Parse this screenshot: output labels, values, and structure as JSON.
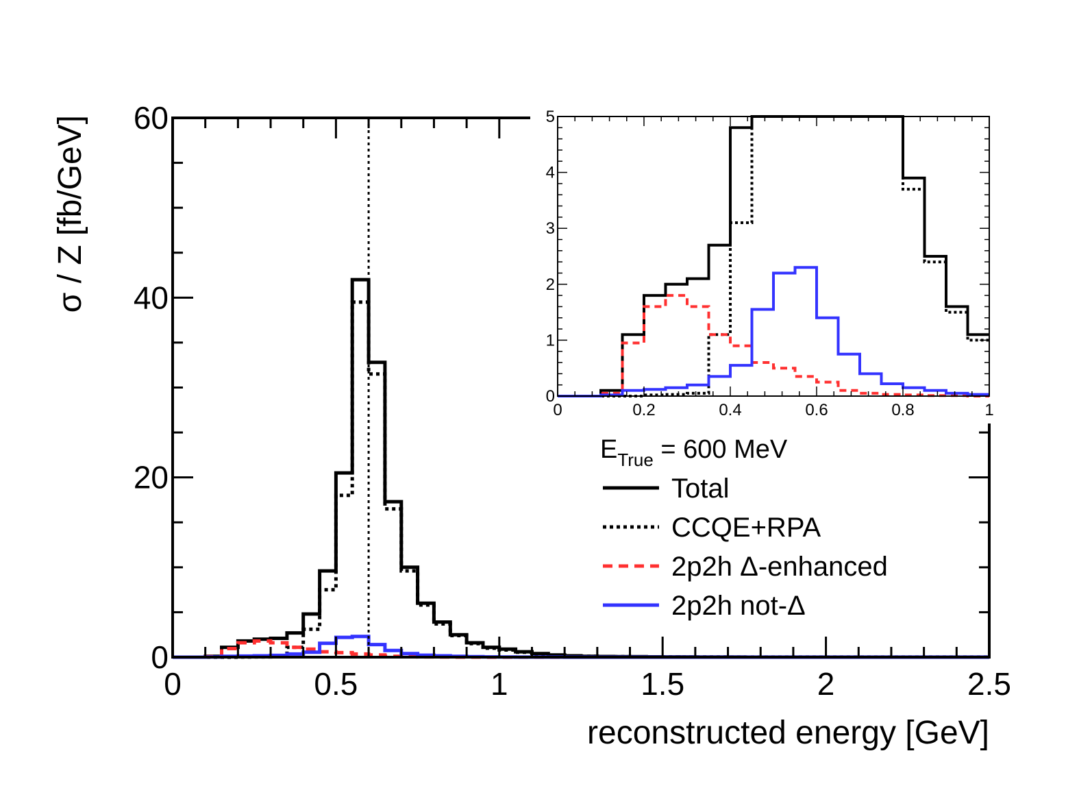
{
  "chart_data": [
    {
      "type": "line",
      "style": "step-histogram",
      "xlabel": "reconstructed energy [GeV]",
      "ylabel": "σ / Z [fb/GeV]",
      "xlim": [
        0,
        2.5
      ],
      "ylim": [
        0,
        60
      ],
      "x_ticks": [
        0,
        0.5,
        1,
        1.5,
        2,
        2.5
      ],
      "x_tick_labels": [
        "0",
        "0.5",
        "1",
        "1.5",
        "2",
        "2.5"
      ],
      "y_ticks": [
        0,
        20,
        40,
        60
      ],
      "y_tick_labels": [
        "0",
        "20",
        "40",
        "60"
      ],
      "grid": false,
      "bin_edges": [
        0,
        0.05,
        0.1,
        0.15,
        0.2,
        0.25,
        0.3,
        0.35,
        0.4,
        0.45,
        0.5,
        0.55,
        0.6,
        0.65,
        0.7,
        0.75,
        0.8,
        0.85,
        0.9,
        0.95,
        1.0,
        1.05,
        1.1,
        1.15,
        1.2,
        1.25,
        1.3,
        1.35,
        1.4,
        1.45,
        1.5,
        1.55,
        1.6,
        1.65,
        1.7,
        1.75,
        1.8,
        1.85,
        1.9,
        1.95,
        2.0,
        2.05,
        2.1,
        2.15,
        2.2,
        2.25,
        2.3,
        2.35,
        2.4,
        2.45,
        2.5
      ],
      "reference_line": {
        "x": 0.6,
        "style": "dotted"
      },
      "series": [
        {
          "name": "Total",
          "color": "#000000",
          "dash": "solid",
          "values": [
            0,
            0,
            0.1,
            1.1,
            1.8,
            2.0,
            2.1,
            2.7,
            4.8,
            9.6,
            20.5,
            42,
            32.8,
            17.3,
            10,
            6,
            3.9,
            2.5,
            1.6,
            1.1,
            0.9,
            0.6,
            0.4,
            0.25,
            0.15,
            0.1,
            0.08,
            0.06,
            0.05,
            0.04,
            0.03,
            0.03,
            0.02,
            0.02,
            0.02,
            0.01,
            0.01,
            0.01,
            0.01,
            0.01,
            0.01,
            0.01,
            0.01,
            0.01,
            0.01,
            0.01,
            0.01,
            0.01,
            0.01,
            0.01
          ]
        },
        {
          "name": "CCQE+RPA",
          "color": "#000000",
          "dash": "dotted",
          "values": [
            0,
            0,
            0,
            0,
            0.02,
            0.03,
            0.05,
            1.1,
            3.1,
            7.5,
            18,
            39.5,
            31.5,
            16.5,
            9.6,
            5.8,
            3.7,
            2.4,
            1.5,
            1.0,
            0.8,
            0.55,
            0.35,
            0.22,
            0.13,
            0.09,
            0.07,
            0.05,
            0.04,
            0.03,
            0.03,
            0.02,
            0.02,
            0.02,
            0.01,
            0.01,
            0.01,
            0.01,
            0.01,
            0.01,
            0.01,
            0.01,
            0.01,
            0.01,
            0.01,
            0.01,
            0.01,
            0.01,
            0.01,
            0.01
          ]
        },
        {
          "name": "2p2h Δ-enhanced",
          "color": "#ff3030",
          "dash": "dashed",
          "values": [
            0,
            0,
            0.05,
            0.95,
            1.6,
            1.8,
            1.6,
            1.1,
            0.9,
            0.6,
            0.5,
            0.35,
            0.25,
            0.1,
            0.05,
            0.03,
            0.02,
            0.01,
            0.01,
            0,
            0,
            0,
            0,
            0,
            0,
            0,
            0,
            0,
            0,
            0,
            0,
            0,
            0,
            0,
            0,
            0,
            0,
            0,
            0,
            0,
            0,
            0,
            0,
            0,
            0,
            0,
            0,
            0,
            0,
            0
          ]
        },
        {
          "name": "2p2h not-Δ",
          "color": "#3333ff",
          "dash": "solid",
          "values": [
            0,
            0,
            0.02,
            0.1,
            0.12,
            0.15,
            0.2,
            0.35,
            0.55,
            1.55,
            2.2,
            2.3,
            1.4,
            0.75,
            0.4,
            0.22,
            0.15,
            0.1,
            0.05,
            0.03,
            0.02,
            0.01,
            0.01,
            0.01,
            0,
            0,
            0,
            0,
            0,
            0,
            0,
            0,
            0,
            0,
            0,
            0,
            0,
            0,
            0,
            0,
            0,
            0,
            0,
            0,
            0,
            0,
            0,
            0,
            0,
            0
          ]
        }
      ]
    },
    {
      "type": "line",
      "style": "step-histogram",
      "role": "inset",
      "xlim": [
        0,
        1
      ],
      "ylim": [
        0,
        5
      ],
      "x_ticks": [
        0,
        0.2,
        0.4,
        0.6,
        0.8,
        1
      ],
      "x_tick_labels": [
        "0",
        "0.2",
        "0.4",
        "0.6",
        "0.8",
        "1"
      ],
      "y_ticks": [
        0,
        1,
        2,
        3,
        4,
        5
      ],
      "y_tick_labels": [
        "0",
        "1",
        "2",
        "3",
        "4",
        "5"
      ],
      "grid": false
    }
  ],
  "legend": {
    "header_main": "E",
    "header_sub": "True",
    "header_rest": " = 600 MeV",
    "placement": "right"
  }
}
